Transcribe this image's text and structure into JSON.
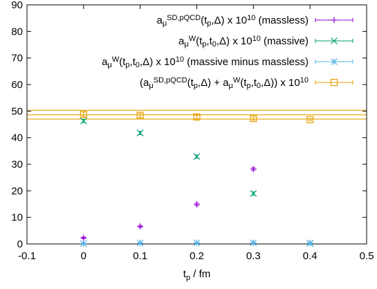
{
  "chart_data": {
    "type": "scatter",
    "xlabel": {
      "base": "t",
      "sub": "p",
      "rest": " / fm"
    },
    "ylabel": "",
    "xlim": [
      -0.1,
      0.5
    ],
    "ylim": [
      0,
      90
    ],
    "xticks": [
      -0.1,
      0,
      0.1,
      0.2,
      0.3,
      0.4,
      0.5
    ],
    "xtick_labels": [
      "-0.1",
      "0",
      "0.1",
      "0.2",
      "0.3",
      "0.4",
      "0.5"
    ],
    "yticks": [
      0,
      10,
      20,
      30,
      40,
      50,
      60,
      70,
      80,
      90
    ],
    "ytick_labels": [
      "0",
      "10",
      "20",
      "30",
      "40",
      "50",
      "60",
      "70",
      "80",
      "90"
    ],
    "grid": false,
    "legend_position": "top-right",
    "series": [
      {
        "name": "a_μ^{SD,pQCD}(t_p,Δ) x 10^{10} (massless)",
        "legend": [
          {
            "t": "a"
          },
          {
            "t": "μ",
            "s": "sub"
          },
          {
            "t": "SD,pQCD",
            "s": "sup"
          },
          {
            "t": "(t"
          },
          {
            "t": "p",
            "s": "sub"
          },
          {
            "t": ",Δ) x 10"
          },
          {
            "t": "10",
            "s": "sup"
          },
          {
            "t": " (massless)"
          }
        ],
        "color": "#9400d3",
        "marker": "plus",
        "x": [
          0,
          0.1,
          0.2,
          0.3
        ],
        "y": [
          2.3,
          6.6,
          14.9,
          28.2
        ],
        "err": [
          0.3,
          0.4,
          0.5,
          0.5
        ]
      },
      {
        "name": "a_μ^W(t_p,t_0,Δ) x 10^{10} (massive)",
        "legend": [
          {
            "t": "a"
          },
          {
            "t": "μ",
            "s": "sub"
          },
          {
            "t": "W",
            "s": "sup"
          },
          {
            "t": "(t"
          },
          {
            "t": "p",
            "s": "sub"
          },
          {
            "t": ",t"
          },
          {
            "t": "0",
            "s": "sub"
          },
          {
            "t": ",Δ) x 10"
          },
          {
            "t": "10",
            "s": "sup"
          },
          {
            "t": " (massive)"
          }
        ],
        "color": "#009e73",
        "marker": "cross",
        "x": [
          0,
          0.1,
          0.2,
          0.3,
          0.4
        ],
        "y": [
          46.3,
          41.8,
          32.9,
          19.0,
          0.2
        ],
        "err": [
          0.6,
          0.6,
          0.6,
          0.6,
          0.2
        ]
      },
      {
        "name": "a_μ^W(t_p,t_0,Δ) x 10^{10} (massive minus massless)",
        "legend": [
          {
            "t": "a"
          },
          {
            "t": "μ",
            "s": "sub"
          },
          {
            "t": "W",
            "s": "sup"
          },
          {
            "t": "(t"
          },
          {
            "t": "p",
            "s": "sub"
          },
          {
            "t": ",t"
          },
          {
            "t": "0",
            "s": "sub"
          },
          {
            "t": ",Δ) x 10"
          },
          {
            "t": "10",
            "s": "sup"
          },
          {
            "t": " (massive minus massless)"
          }
        ],
        "color": "#56b4e9",
        "marker": "star",
        "x": [
          0,
          0.1,
          0.2,
          0.3,
          0.4
        ],
        "y": [
          0.15,
          0.3,
          0.4,
          0.4,
          0.3
        ],
        "err": [
          0.1,
          0.1,
          0.1,
          0.1,
          0.1
        ]
      },
      {
        "name": "(a_μ^{SD,pQCD}(t_p,Δ) + a_μ^W(t_p,t_0,Δ)) x 10^{10}",
        "legend": [
          {
            "t": "(a"
          },
          {
            "t": "μ",
            "s": "sub"
          },
          {
            "t": "SD,pQCD",
            "s": "sup"
          },
          {
            "t": "(t"
          },
          {
            "t": "p",
            "s": "sub"
          },
          {
            "t": ",Δ) + a"
          },
          {
            "t": "μ",
            "s": "sub"
          },
          {
            "t": "W",
            "s": "sup"
          },
          {
            "t": "(t"
          },
          {
            "t": "p",
            "s": "sub"
          },
          {
            "t": ",t"
          },
          {
            "t": "0",
            "s": "sub"
          },
          {
            "t": ",Δ)) x 10"
          },
          {
            "t": "10",
            "s": "sup"
          }
        ],
        "color": "#e69f00",
        "marker": "square",
        "x": [
          0,
          0.1,
          0.2,
          0.3,
          0.4
        ],
        "y": [
          48.8,
          48.4,
          47.8,
          47.2,
          46.8
        ],
        "err": [
          0.7,
          0.7,
          0.6,
          0.6,
          0.4
        ]
      }
    ],
    "bands": [
      {
        "color": "#e69f00",
        "y_low": 47.0,
        "y_center": 48.6,
        "y_high": 50.3
      }
    ]
  }
}
